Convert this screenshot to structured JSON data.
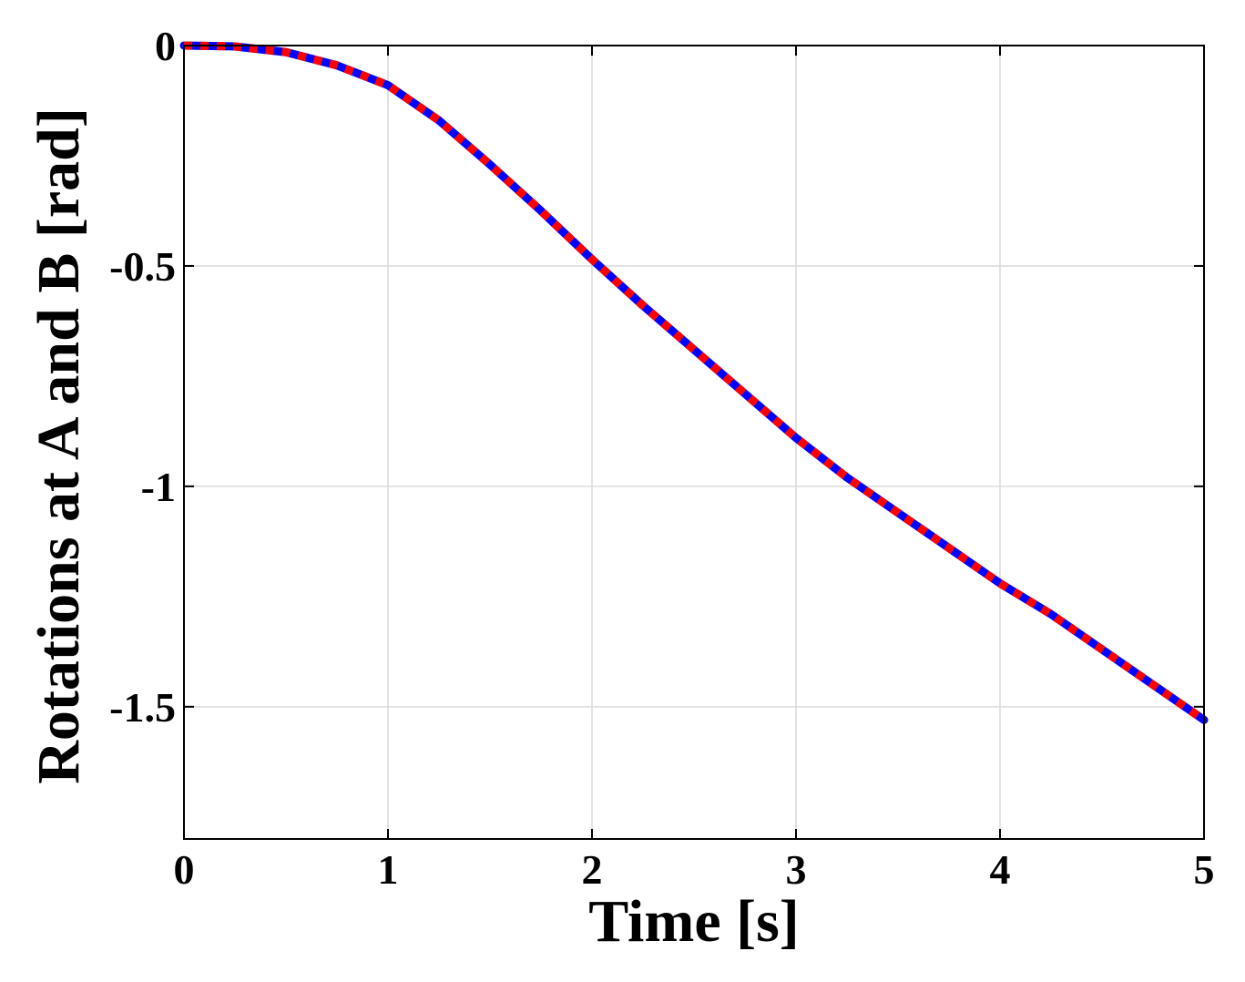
{
  "chart_data": {
    "type": "line",
    "xlabel": "Time [s]",
    "ylabel": "Rotations at A and B [rad]",
    "xlim": [
      0,
      5
    ],
    "ylim": [
      -1.8,
      0
    ],
    "x_ticks": [
      0,
      1,
      2,
      3,
      4,
      5
    ],
    "y_ticks": [
      0,
      -0.5,
      -1,
      -1.5
    ],
    "x_tick_labels": [
      "0",
      "1",
      "2",
      "3",
      "4",
      "5"
    ],
    "y_tick_labels": [
      "0",
      "-0.5",
      "-1",
      "-1.5"
    ],
    "grid": true,
    "series": [
      {
        "color": "#0000ff",
        "style": "solid",
        "x": [
          0,
          0.25,
          0.5,
          0.75,
          1.0,
          1.25,
          1.5,
          1.75,
          2.0,
          2.25,
          2.5,
          2.75,
          3.0,
          3.25,
          3.5,
          3.75,
          4.0,
          4.25,
          4.5,
          4.75,
          5.0
        ],
        "y": [
          0,
          -0.002,
          -0.015,
          -0.045,
          -0.09,
          -0.17,
          -0.27,
          -0.375,
          -0.485,
          -0.59,
          -0.69,
          -0.79,
          -0.89,
          -0.98,
          -1.06,
          -1.14,
          -1.22,
          -1.29,
          -1.37,
          -1.45,
          -1.53
        ]
      },
      {
        "color": "#ff0000",
        "style": "dashed",
        "x": [
          0,
          0.25,
          0.5,
          0.75,
          1.0,
          1.25,
          1.5,
          1.75,
          2.0,
          2.25,
          2.5,
          2.75,
          3.0,
          3.25,
          3.5,
          3.75,
          4.0,
          4.25,
          4.5,
          4.75,
          5.0
        ],
        "y": [
          0,
          -0.002,
          -0.015,
          -0.045,
          -0.09,
          -0.17,
          -0.27,
          -0.375,
          -0.485,
          -0.59,
          -0.69,
          -0.79,
          -0.89,
          -0.98,
          -1.06,
          -1.14,
          -1.22,
          -1.29,
          -1.37,
          -1.45,
          -1.53
        ]
      }
    ]
  }
}
